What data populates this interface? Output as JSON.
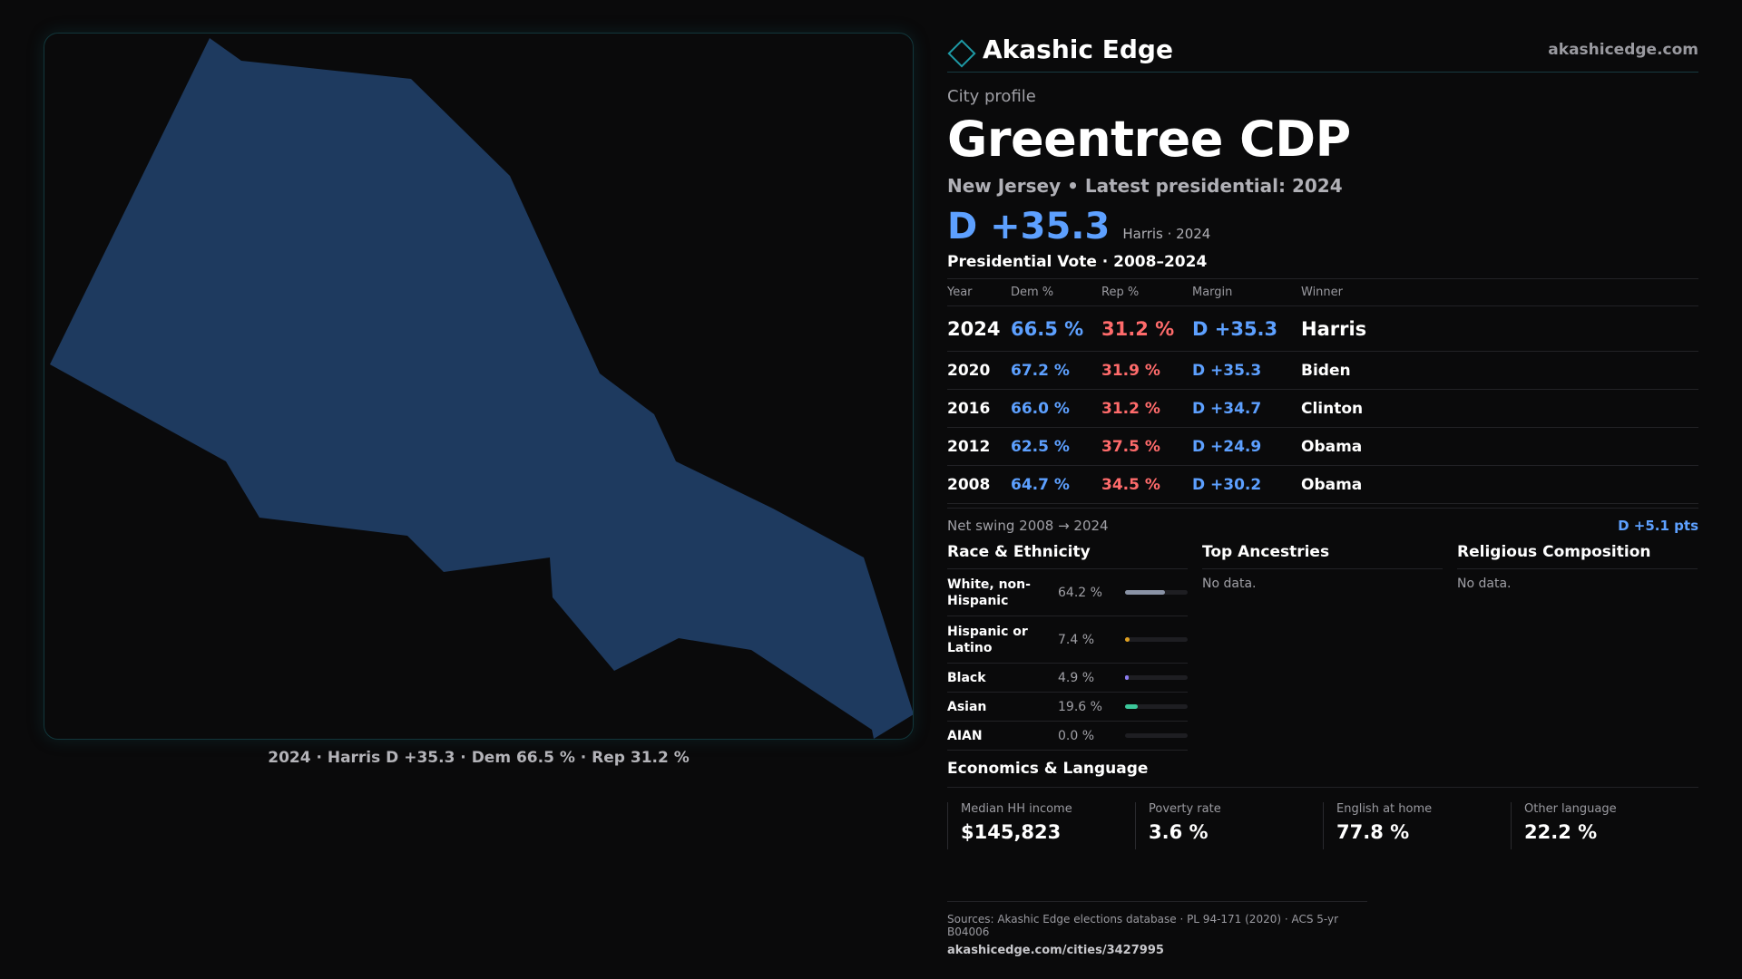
{
  "map": {
    "caption": "2024 · Harris D +35.3 · Dem 66.5 % · Rep 31.2 %",
    "fill_color": "#1e3a5f",
    "border_color": "#12363b"
  },
  "header": {
    "brand": "Akashic Edge",
    "site": "akashicedge.com",
    "brand_icon": "diamond-icon"
  },
  "profile": {
    "eyebrow": "City profile",
    "title": "Greentree CDP",
    "subtitle": "New Jersey • Latest presidential: 2024",
    "margin": "D +35.3",
    "margin_note": "Harris · 2024"
  },
  "vote": {
    "title": "Presidential Vote · 2008–2024",
    "headers": [
      "Year",
      "Dem %",
      "Rep %",
      "Margin",
      "Winner"
    ],
    "rows": [
      {
        "year": "2024",
        "dem": "66.5 %",
        "rep": "31.2 %",
        "margin": "D +35.3",
        "winner": "Harris"
      },
      {
        "year": "2020",
        "dem": "67.2 %",
        "rep": "31.9 %",
        "margin": "D +35.3",
        "winner": "Biden"
      },
      {
        "year": "2016",
        "dem": "66.0 %",
        "rep": "31.2 %",
        "margin": "D +34.7",
        "winner": "Clinton"
      },
      {
        "year": "2012",
        "dem": "62.5 %",
        "rep": "37.5 %",
        "margin": "D +24.9",
        "winner": "Obama"
      },
      {
        "year": "2008",
        "dem": "64.7 %",
        "rep": "34.5 %",
        "margin": "D +30.2",
        "winner": "Obama"
      }
    ],
    "swing_label": "Net swing 2008 → 2024",
    "swing_value": "D +5.1 pts",
    "colors": {
      "dem": "#5da0ff",
      "rep": "#ff6b6b"
    }
  },
  "race": {
    "title": "Race & Ethnicity",
    "rows": [
      {
        "label": "White, non-Hispanic",
        "value": "64.2 %",
        "share": 0.642,
        "color": "#8a93a6"
      },
      {
        "label": "Hispanic or Latino",
        "value": "7.4 %",
        "share": 0.074,
        "color": "#e0a020"
      },
      {
        "label": "Black",
        "value": "4.9 %",
        "share": 0.049,
        "color": "#8c7cf0"
      },
      {
        "label": "Asian",
        "value": "19.6 %",
        "share": 0.196,
        "color": "#3cc79a"
      },
      {
        "label": "AIAN",
        "value": "0.0 %",
        "share": 0.0,
        "color": "#8a93a6"
      }
    ]
  },
  "ancestries": {
    "title": "Top Ancestries",
    "empty": "No data."
  },
  "religion": {
    "title": "Religious Composition",
    "empty": "No data."
  },
  "economics": {
    "title": "Economics & Language",
    "items": [
      {
        "label": "Median HH income",
        "value": "$145,823"
      },
      {
        "label": "Poverty rate",
        "value": "3.6 %"
      },
      {
        "label": "English at home",
        "value": "77.8 %"
      },
      {
        "label": "Other language",
        "value": "22.2 %"
      }
    ]
  },
  "sources": {
    "text": "Sources: Akashic Edge elections database · PL 94-171 (2020) · ACS 5-yr B04006",
    "url": "akashicedge.com/cities/3427995"
  }
}
